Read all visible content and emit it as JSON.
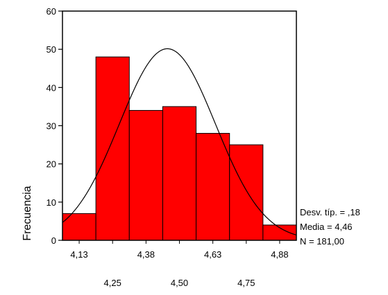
{
  "chart_data": {
    "type": "bar",
    "ylabel": "Frecuencia",
    "xlabel": "",
    "x_ticks_upper": [
      "4,13",
      "4,38",
      "4,63",
      "4,88"
    ],
    "x_ticks_lower": [
      "4,25",
      "4,50",
      "4,75"
    ],
    "bin_centers": [
      4.13,
      4.25,
      4.38,
      4.5,
      4.63,
      4.75,
      4.88
    ],
    "values": [
      7,
      48,
      34,
      35,
      28,
      25,
      4
    ],
    "ylim": [
      0,
      60
    ],
    "yticks": [
      0,
      10,
      20,
      30,
      40,
      50,
      60
    ],
    "bar_color": "#ff0000",
    "normal_curve": {
      "mean": 4.46,
      "sd": 0.18,
      "n": 181
    },
    "stats": {
      "sd_label": "Desv. típ. = ,18",
      "mean_label": "Media = 4,46",
      "n_label": "N = 181,00"
    }
  }
}
